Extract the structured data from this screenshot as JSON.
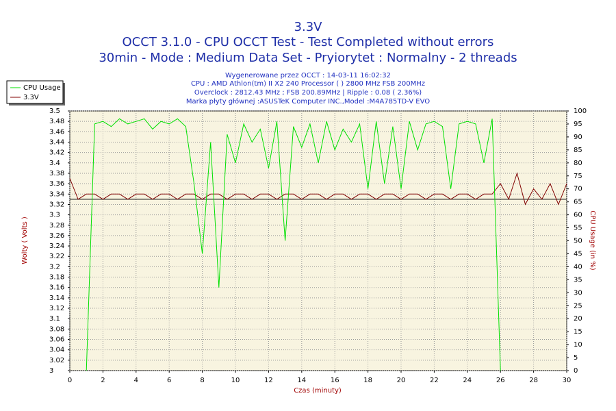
{
  "chart_data": {
    "type": "line",
    "title": "3.3V",
    "subtitle": [
      "OCCT 3.1.0 - CPU OCCT Test - Test Completed without errors",
      "30min - Mode : Medium Data Set - Pryiorytet : Normalny - 2 threads"
    ],
    "info": [
      "Wygenerowane przez OCCT : 14-03-11 16:02:32",
      "CPU : AMD Athlon(tm) II X2 240 Processor (  ) 2800 MHz FSB 200MHz",
      "Overclock : 2812.43 MHz ; FSB 200.89MHz | Ripple : 0.08 ( 2.36%)",
      "Marka płyty głównej :ASUSTeK Computer INC.,Model :M4A785TD-V EVO"
    ],
    "xlabel": "Czas (minuty)",
    "ylabel": "Wolty ( Volts )",
    "y2label": "CPU Usage (in %)",
    "x": [
      0,
      0.5,
      1,
      1.5,
      2,
      2.5,
      3,
      3.5,
      4,
      4.5,
      5,
      5.5,
      6,
      6.5,
      7,
      7.5,
      8,
      8.5,
      9,
      9.5,
      10,
      10.5,
      11,
      11.5,
      12,
      12.5,
      13,
      13.5,
      14,
      14.5,
      15,
      15.5,
      16,
      16.5,
      17,
      17.5,
      18,
      18.5,
      19,
      19.5,
      20,
      20.5,
      21,
      21.5,
      22,
      22.5,
      23,
      23.5,
      24,
      24.5,
      25,
      25.5,
      26,
      26.5,
      27,
      27.5,
      28,
      28.5,
      29,
      29.5,
      30
    ],
    "series": [
      {
        "name": "CPU Usage",
        "color": "#00e000",
        "axis": "y2",
        "values": [
          null,
          null,
          0,
          95,
          96,
          94,
          97,
          95,
          96,
          97,
          93,
          96,
          95,
          97,
          94,
          72,
          45,
          88,
          32,
          91,
          80,
          95,
          88,
          93,
          78,
          96,
          50,
          94,
          86,
          95,
          80,
          96,
          85,
          93,
          88,
          95,
          70,
          96,
          72,
          94,
          70,
          96,
          85,
          95,
          96,
          94,
          70,
          95,
          96,
          95,
          80,
          97,
          0,
          null,
          null,
          null,
          null,
          null,
          null,
          null,
          null
        ]
      },
      {
        "name": "3.3V",
        "color": "#800000",
        "values": [
          3.37,
          3.33,
          3.34,
          3.34,
          3.33,
          3.34,
          3.34,
          3.33,
          3.34,
          3.34,
          3.33,
          3.34,
          3.34,
          3.33,
          3.34,
          3.34,
          3.33,
          3.34,
          3.34,
          3.33,
          3.34,
          3.34,
          3.33,
          3.34,
          3.34,
          3.33,
          3.34,
          3.34,
          3.33,
          3.34,
          3.34,
          3.33,
          3.34,
          3.34,
          3.33,
          3.34,
          3.34,
          3.33,
          3.34,
          3.34,
          3.33,
          3.34,
          3.34,
          3.33,
          3.34,
          3.34,
          3.33,
          3.34,
          3.34,
          3.33,
          3.34,
          3.34,
          3.36,
          3.33,
          3.38,
          3.32,
          3.35,
          3.33,
          3.36,
          3.32,
          3.36
        ]
      }
    ],
    "hline": 3.33,
    "xlim": [
      0,
      30
    ],
    "xticks": [
      0,
      2,
      4,
      6,
      8,
      10,
      12,
      14,
      16,
      18,
      20,
      22,
      24,
      26,
      28,
      30
    ],
    "ylim": [
      3,
      3.5
    ],
    "yticks": [
      3.5,
      3.48,
      3.46,
      3.44,
      3.42,
      3.4,
      3.38,
      3.36,
      3.34,
      3.32,
      3.3,
      3.28,
      3.26,
      3.24,
      3.22,
      3.2,
      3.18,
      3.16,
      3.14,
      3.12,
      3.1,
      3.08,
      3.06,
      3.04,
      3.02,
      3
    ],
    "y2lim": [
      0,
      100
    ],
    "y2ticks": [
      100,
      95,
      90,
      85,
      80,
      75,
      70,
      65,
      60,
      55,
      50,
      45,
      40,
      35,
      30,
      25,
      20,
      15,
      10,
      5,
      0
    ],
    "grid": true,
    "legend": "top-left"
  }
}
